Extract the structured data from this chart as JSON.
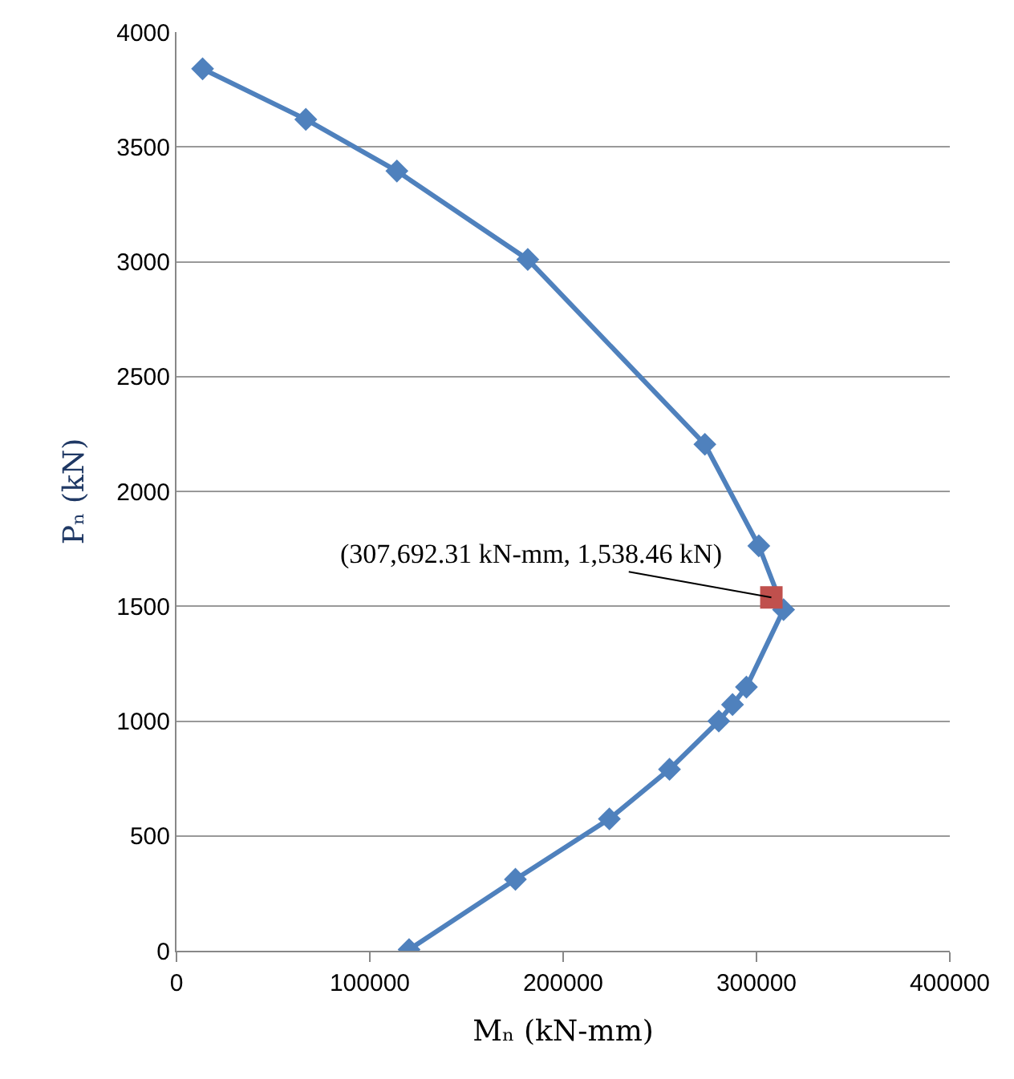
{
  "chart_data": {
    "type": "line",
    "xlabel": "Mₙ (kN-mm)",
    "ylabel": "Pₙ (kN)",
    "xlim": [
      0,
      400000
    ],
    "xticks": [
      0,
      100000,
      200000,
      300000,
      400000
    ],
    "ylim": [
      0,
      4000
    ],
    "yticks": [
      0,
      500,
      1000,
      1500,
      2000,
      2500,
      3000,
      3500,
      4000
    ],
    "grid": "y",
    "legend": false,
    "series": [
      {
        "marker": "diamond",
        "color": "#4f81bd",
        "x": [
          13500,
          66900,
          114000,
          181700,
          273300,
          301200,
          314000,
          294800,
          287600,
          280500,
          255000,
          223900,
          175300,
          120300
        ],
        "values": [
          3840,
          3620,
          3395,
          3010,
          2205,
          1763,
          1485,
          1148,
          1072,
          1000,
          790,
          574,
          311,
          5
        ]
      },
      {
        "type": "scatter",
        "marker": "square",
        "color": "#c0504d",
        "x": [
          307692.31
        ],
        "values": [
          1538.46
        ]
      }
    ],
    "annotations": [
      {
        "text": "(307,692.31 kN-mm, 1,538.46 kN)",
        "x": 307692.31,
        "y": 1538.46
      }
    ]
  }
}
